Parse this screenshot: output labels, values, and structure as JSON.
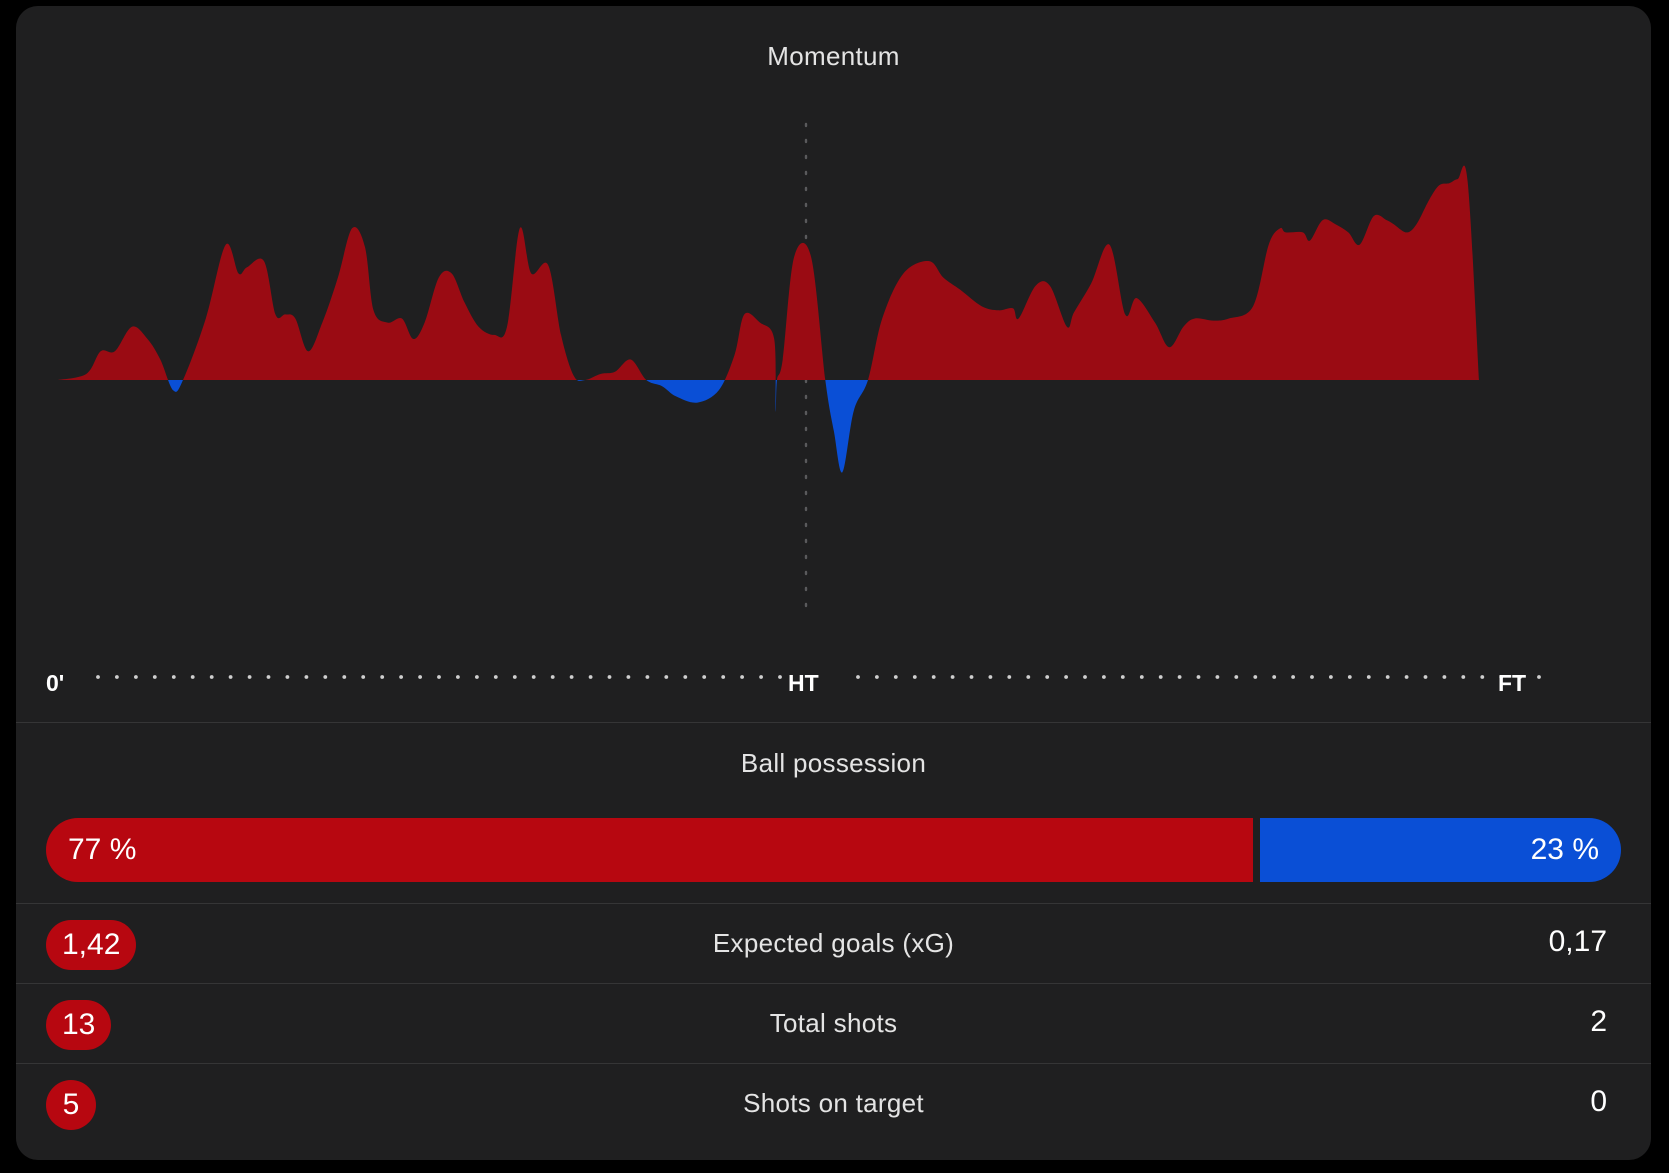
{
  "momentum": {
    "title": "Momentum",
    "axis": {
      "start": "0'",
      "half": "HT",
      "end": "FT"
    }
  },
  "possession": {
    "title": "Ball possession",
    "home_value": 77,
    "home_label": "77 %",
    "away_label": "23 %"
  },
  "stats": [
    {
      "name": "Expected goals (xG)",
      "home": "1,42",
      "away": "0,17"
    },
    {
      "name": "Total shots",
      "home": "13",
      "away": "2"
    },
    {
      "name": "Shots on target",
      "home": "5",
      "away": "0"
    }
  ],
  "colors": {
    "home": "#b70710",
    "away": "#0a4fd6",
    "card_bg": "#1f1f20",
    "page_bg": "#000000"
  },
  "chart_data": {
    "type": "area",
    "title": "Momentum",
    "x_ticks": [
      "0'",
      "HT",
      "FT"
    ],
    "x_range": [
      0,
      100
    ],
    "ylim": [
      -100,
      100
    ],
    "series": [
      {
        "points": [
          [
            0,
            0
          ],
          [
            2,
            3
          ],
          [
            3,
            14
          ],
          [
            4,
            14
          ],
          [
            5.2,
            26
          ],
          [
            6.3,
            20
          ],
          [
            7.2,
            10
          ],
          [
            8.1,
            -5
          ],
          [
            8.8,
            0
          ],
          [
            10.4,
            30
          ],
          [
            11.8,
            66
          ],
          [
            12.7,
            52
          ],
          [
            13.3,
            55
          ],
          [
            14.5,
            58
          ],
          [
            15.3,
            32
          ],
          [
            16,
            32
          ],
          [
            16.7,
            30
          ],
          [
            17.6,
            14
          ],
          [
            18.6,
            28
          ],
          [
            19.7,
            50
          ],
          [
            20.7,
            74
          ],
          [
            21.6,
            65
          ],
          [
            22.2,
            34
          ],
          [
            23.2,
            28
          ],
          [
            24.2,
            30
          ],
          [
            25,
            20
          ],
          [
            25.8,
            28
          ],
          [
            26.8,
            50
          ],
          [
            27.7,
            52
          ],
          [
            28.6,
            38
          ],
          [
            29.6,
            26
          ],
          [
            30.7,
            22
          ],
          [
            31.6,
            26
          ],
          [
            32.5,
            74
          ],
          [
            33.3,
            52
          ],
          [
            34.5,
            56
          ],
          [
            35.4,
            22
          ],
          [
            36.3,
            2
          ],
          [
            37.1,
            0
          ],
          [
            38.2,
            3
          ],
          [
            39.2,
            4
          ],
          [
            40.3,
            10
          ],
          [
            41.4,
            0
          ],
          [
            42.5,
            -3
          ],
          [
            43.5,
            -8
          ],
          [
            45,
            -11
          ],
          [
            46.5,
            -5
          ],
          [
            47.6,
            12
          ],
          [
            48.3,
            32
          ],
          [
            49.4,
            28
          ],
          [
            50.4,
            20
          ],
          [
            50.5,
            -15
          ],
          [
            50.6,
            0
          ],
          [
            51,
            10
          ],
          [
            51.8,
            60
          ],
          [
            53,
            60
          ],
          [
            54,
            0
          ],
          [
            54.6,
            -25
          ],
          [
            55.2,
            -45
          ],
          [
            56,
            -15
          ],
          [
            57,
            0
          ],
          [
            58,
            30
          ],
          [
            59.5,
            52
          ],
          [
            61.3,
            58
          ],
          [
            62.3,
            50
          ],
          [
            63.5,
            44
          ],
          [
            65,
            36
          ],
          [
            66.2,
            34
          ],
          [
            67.2,
            35
          ],
          [
            67.6,
            30
          ],
          [
            68.8,
            46
          ],
          [
            69.8,
            46
          ],
          [
            71,
            26
          ],
          [
            71.5,
            33
          ],
          [
            72.7,
            47
          ],
          [
            74,
            66
          ],
          [
            75.1,
            32
          ],
          [
            75.9,
            40
          ],
          [
            77.2,
            28
          ],
          [
            78.2,
            16
          ],
          [
            79.2,
            26
          ],
          [
            80,
            30
          ],
          [
            81.3,
            29
          ],
          [
            82.4,
            30
          ],
          [
            84.1,
            36
          ],
          [
            85.2,
            66
          ],
          [
            86,
            74
          ],
          [
            86.4,
            72
          ],
          [
            87.6,
            72
          ],
          [
            88.1,
            68
          ],
          [
            89,
            78
          ],
          [
            89.9,
            76
          ],
          [
            90.8,
            72
          ],
          [
            91.6,
            66
          ],
          [
            92.6,
            80
          ],
          [
            93.5,
            78
          ],
          [
            94,
            76
          ],
          [
            94.9,
            72
          ],
          [
            95.6,
            76
          ],
          [
            96.5,
            88
          ],
          [
            97.2,
            95
          ],
          [
            97.9,
            96
          ],
          [
            98.5,
            98
          ],
          [
            99.2,
            97
          ],
          [
            100,
            0
          ]
        ]
      }
    ]
  }
}
